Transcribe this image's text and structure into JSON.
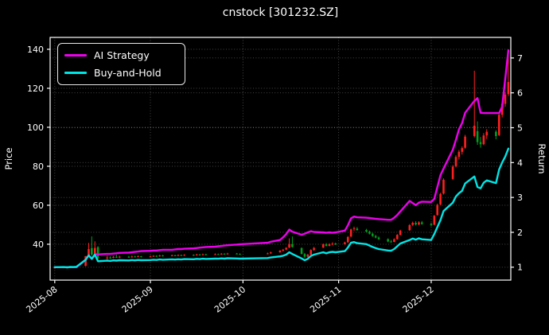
{
  "window": {
    "title": "cnstock [301232.SZ]"
  },
  "chart_data": {
    "type": "candlestick+line",
    "title": "cnstock [301232.SZ]",
    "legend": [
      {
        "label": "AI Strategy",
        "color": "#ee00ee"
      },
      {
        "label": "Buy-and-Hold",
        "color": "#00e5e5"
      }
    ],
    "left_axis": {
      "label": "Price",
      "ticks": [
        40,
        60,
        80,
        100,
        120,
        140
      ],
      "range": [
        21.6,
        146.1
      ]
    },
    "right_axis": {
      "label": "Return",
      "ticks": [
        1,
        2,
        3,
        4,
        5,
        6,
        7
      ],
      "range": [
        0.63,
        7.59
      ]
    },
    "x_axis": {
      "tick_labels": [
        "2025-08",
        "2025-09",
        "2025-10",
        "2025-11",
        "2025-12"
      ],
      "tick_day_offsets": [
        0,
        31,
        61,
        92,
        122
      ],
      "range_days": [
        -1.5,
        147.8
      ]
    },
    "colors": {
      "up": "#ff2020",
      "down": "#00a01e",
      "background": "#000000",
      "text": "#ffffff",
      "grid": "#ffffff",
      "spine": "#ffffff"
    },
    "grid": "dotted, both price and return ticks, plus month verticals",
    "dates": [
      "08-01",
      "08-04",
      "08-05",
      "08-06",
      "08-07",
      "08-08",
      "08-11",
      "08-12",
      "08-13",
      "08-14",
      "08-15",
      "08-18",
      "08-19",
      "08-20",
      "08-21",
      "08-22",
      "08-25",
      "08-26",
      "08-27",
      "08-28",
      "08-29",
      "09-01",
      "09-02",
      "09-03",
      "09-04",
      "09-05",
      "09-08",
      "09-09",
      "09-10",
      "09-11",
      "09-12",
      "09-15",
      "09-16",
      "09-17",
      "09-18",
      "09-19",
      "09-22",
      "09-23",
      "09-24",
      "09-25",
      "09-26",
      "09-29",
      "09-30",
      "10-09",
      "10-10",
      "10-13",
      "10-14",
      "10-15",
      "10-16",
      "10-17",
      "10-20",
      "10-21",
      "10-22",
      "10-23",
      "10-24",
      "10-27",
      "10-28",
      "10-29",
      "10-30",
      "10-31",
      "11-03",
      "11-04",
      "11-05",
      "11-06",
      "11-07",
      "11-10",
      "11-11",
      "11-12",
      "11-13",
      "11-14",
      "11-17",
      "11-18",
      "11-19",
      "11-20",
      "11-21",
      "11-24",
      "11-25",
      "11-26",
      "11-27",
      "11-28",
      "12-01",
      "12-02",
      "12-03",
      "12-04",
      "12-05",
      "12-08",
      "12-09",
      "12-10",
      "12-11",
      "12-12",
      "12-15",
      "12-16",
      "12-17",
      "12-18",
      "12-19",
      "12-22",
      "12-23",
      "12-24",
      "12-25",
      "12-26"
    ],
    "ohlc": [
      [
        27.8,
        28.3,
        27.6,
        28.0
      ],
      [
        28.0,
        28.4,
        27.8,
        28.1
      ],
      [
        28.1,
        28.3,
        27.7,
        27.9
      ],
      [
        27.9,
        28.5,
        27.8,
        28.2
      ],
      [
        28.2,
        28.4,
        27.9,
        28.1
      ],
      [
        28.1,
        28.6,
        28.0,
        28.3
      ],
      [
        28.9,
        33.9,
        28.7,
        33.9
      ],
      [
        34.5,
        40.7,
        34.0,
        37.5
      ],
      [
        38.0,
        44.0,
        34.0,
        34.7
      ],
      [
        35.0,
        41.5,
        34.5,
        38.1
      ],
      [
        38.5,
        39.0,
        32.3,
        32.8
      ],
      [
        32.8,
        34.2,
        32.0,
        33.2
      ],
      [
        33.2,
        33.8,
        32.5,
        33.0
      ],
      [
        33.0,
        34.0,
        32.8,
        33.5
      ],
      [
        33.5,
        34.6,
        33.0,
        33.3
      ],
      [
        33.3,
        34.1,
        32.9,
        33.6
      ],
      [
        33.6,
        34.0,
        33.0,
        33.4
      ],
      [
        33.4,
        34.2,
        33.1,
        33.7
      ],
      [
        33.7,
        34.1,
        33.2,
        33.5
      ],
      [
        33.5,
        34.3,
        33.3,
        33.8
      ],
      [
        33.8,
        34.0,
        33.2,
        33.6
      ],
      [
        33.6,
        34.2,
        33.4,
        33.7
      ],
      [
        33.7,
        34.4,
        33.5,
        34.0
      ],
      [
        34.0,
        34.3,
        33.5,
        33.8
      ],
      [
        33.8,
        34.6,
        33.6,
        34.2
      ],
      [
        34.2,
        34.5,
        33.7,
        34.0
      ],
      [
        34.0,
        34.7,
        33.8,
        34.3
      ],
      [
        34.3,
        34.6,
        33.9,
        34.1
      ],
      [
        34.1,
        34.8,
        33.9,
        34.4
      ],
      [
        34.4,
        34.7,
        34.0,
        34.2
      ],
      [
        34.2,
        34.9,
        34.0,
        34.5
      ],
      [
        34.5,
        34.8,
        34.1,
        34.4
      ],
      [
        34.4,
        35.1,
        34.2,
        34.7
      ],
      [
        34.7,
        35.0,
        34.2,
        34.5
      ],
      [
        34.5,
        35.2,
        34.3,
        34.8
      ],
      [
        34.8,
        35.1,
        34.3,
        34.6
      ],
      [
        34.6,
        35.3,
        34.4,
        34.9
      ],
      [
        34.9,
        35.2,
        34.5,
        34.8
      ],
      [
        34.8,
        35.5,
        34.6,
        35.1
      ],
      [
        35.1,
        35.4,
        34.6,
        34.9
      ],
      [
        34.9,
        35.6,
        34.7,
        35.2
      ],
      [
        35.2,
        35.5,
        34.8,
        35.0
      ],
      [
        35.0,
        35.3,
        34.6,
        34.9
      ],
      [
        35.0,
        35.7,
        34.8,
        35.3
      ],
      [
        35.3,
        36.2,
        35.1,
        35.8
      ],
      [
        35.9,
        37.0,
        35.6,
        36.7
      ],
      [
        36.7,
        37.6,
        36.3,
        37.2
      ],
      [
        37.3,
        38.5,
        36.9,
        38.1
      ],
      [
        38.3,
        43.0,
        38.0,
        40.0
      ],
      [
        40.0,
        44.0,
        38.2,
        38.6
      ],
      [
        38.0,
        38.4,
        34.8,
        35.0
      ],
      [
        35.0,
        35.5,
        33.0,
        33.6
      ],
      [
        33.6,
        35.0,
        33.2,
        34.7
      ],
      [
        34.7,
        37.4,
        34.5,
        37.0
      ],
      [
        37.0,
        38.6,
        36.6,
        38.1
      ],
      [
        38.3,
        40.4,
        38.0,
        40.0
      ],
      [
        40.0,
        40.6,
        38.8,
        39.2
      ],
      [
        39.2,
        40.5,
        38.9,
        40.0
      ],
      [
        40.0,
        41.0,
        39.5,
        40.3
      ],
      [
        40.3,
        40.8,
        39.6,
        40.0
      ],
      [
        40.1,
        41.3,
        39.8,
        40.9
      ],
      [
        41.0,
        44.2,
        40.7,
        43.7
      ],
      [
        44.0,
        48.0,
        43.6,
        47.6
      ],
      [
        47.8,
        49.0,
        46.8,
        48.2
      ],
      [
        48.0,
        48.8,
        46.9,
        47.3
      ],
      [
        47.3,
        47.9,
        46.0,
        46.5
      ],
      [
        46.5,
        47.0,
        45.0,
        45.4
      ],
      [
        45.4,
        45.9,
        43.8,
        44.2
      ],
      [
        44.2,
        44.8,
        43.0,
        43.4
      ],
      [
        43.4,
        44.0,
        42.2,
        42.6
      ],
      [
        42.6,
        43.0,
        41.0,
        41.4
      ],
      [
        41.4,
        42.2,
        40.8,
        41.2
      ],
      [
        41.2,
        43.0,
        41.0,
        42.6
      ],
      [
        42.6,
        45.2,
        42.3,
        44.8
      ],
      [
        44.8,
        47.4,
        44.5,
        47.0
      ],
      [
        47.2,
        50.3,
        46.9,
        49.8
      ],
      [
        49.9,
        51.6,
        49.4,
        51.0
      ],
      [
        51.0,
        51.8,
        49.6,
        50.1
      ],
      [
        50.1,
        51.8,
        49.8,
        51.2
      ],
      [
        51.2,
        51.9,
        50.0,
        50.4
      ],
      [
        50.4,
        51.0,
        49.2,
        49.8
      ],
      [
        50.0,
        55.0,
        49.8,
        54.6
      ],
      [
        55.0,
        60.8,
        54.6,
        60.2
      ],
      [
        60.5,
        66.4,
        60.0,
        65.8
      ],
      [
        66.0,
        73.8,
        65.5,
        73.1
      ],
      [
        73.5,
        80.6,
        73.0,
        79.8
      ],
      [
        80.0,
        85.6,
        79.4,
        84.8
      ],
      [
        84.8,
        88.3,
        83.5,
        87.4
      ],
      [
        87.4,
        90.2,
        86.0,
        89.3
      ],
      [
        89.5,
        96.1,
        89.0,
        95.2
      ],
      [
        95.5,
        129.0,
        94.8,
        100.8
      ],
      [
        98.0,
        103.0,
        91.0,
        92.4
      ],
      [
        92.4,
        95.0,
        89.5,
        91.3
      ],
      [
        91.3,
        97.0,
        90.8,
        95.8
      ],
      [
        95.8,
        99.0,
        94.0,
        97.7
      ],
      [
        97.7,
        98.5,
        93.8,
        95.5
      ],
      [
        96.0,
        107.5,
        95.5,
        106.4
      ],
      [
        106.4,
        113.2,
        105.0,
        112.0
      ],
      [
        112.0,
        118.0,
        110.5,
        116.8
      ],
      [
        117.0,
        140.0,
        116.0,
        123.2
      ]
    ],
    "ai_strategy_return": [
      1.0,
      1.0,
      1.0,
      1.0,
      1.0,
      1.0,
      1.21,
      1.34,
      1.24,
      1.37,
      1.37,
      1.38,
      1.38,
      1.39,
      1.4,
      1.41,
      1.42,
      1.43,
      1.44,
      1.45,
      1.46,
      1.47,
      1.48,
      1.48,
      1.49,
      1.5,
      1.5,
      1.51,
      1.52,
      1.52,
      1.53,
      1.54,
      1.55,
      1.56,
      1.57,
      1.58,
      1.59,
      1.6,
      1.61,
      1.62,
      1.63,
      1.65,
      1.66,
      1.7,
      1.73,
      1.78,
      1.86,
      1.95,
      2.08,
      2.02,
      1.93,
      1.96,
      2.0,
      2.03,
      2.01,
      2.0,
      1.99,
      2.0,
      1.99,
      2.0,
      2.05,
      2.2,
      2.4,
      2.45,
      2.43,
      2.42,
      2.41,
      2.4,
      2.39,
      2.38,
      2.36,
      2.36,
      2.42,
      2.5,
      2.6,
      2.9,
      2.84,
      2.78,
      2.85,
      2.88,
      2.87,
      2.96,
      3.3,
      3.64,
      3.83,
      4.37,
      4.65,
      4.95,
      5.13,
      5.43,
      5.77,
      5.85,
      5.43,
      5.42,
      5.42,
      5.42,
      5.42,
      5.6,
      6.4,
      7.22
    ],
    "buy_hold_return": [
      1.0,
      1.004,
      0.996,
      1.007,
      1.004,
      1.011,
      1.211,
      1.339,
      1.239,
      1.361,
      1.171,
      1.186,
      1.179,
      1.196,
      1.189,
      1.2,
      1.193,
      1.204,
      1.196,
      1.207,
      1.2,
      1.204,
      1.214,
      1.207,
      1.221,
      1.214,
      1.225,
      1.218,
      1.229,
      1.221,
      1.232,
      1.229,
      1.239,
      1.232,
      1.243,
      1.236,
      1.246,
      1.243,
      1.254,
      1.246,
      1.257,
      1.25,
      1.246,
      1.261,
      1.279,
      1.311,
      1.329,
      1.361,
      1.429,
      1.379,
      1.25,
      1.2,
      1.239,
      1.321,
      1.361,
      1.429,
      1.4,
      1.429,
      1.439,
      1.429,
      1.461,
      1.561,
      1.7,
      1.721,
      1.689,
      1.661,
      1.621,
      1.579,
      1.55,
      1.521,
      1.479,
      1.471,
      1.521,
      1.6,
      1.679,
      1.779,
      1.821,
      1.789,
      1.829,
      1.8,
      1.779,
      1.95,
      2.15,
      2.35,
      2.611,
      2.85,
      3.029,
      3.121,
      3.189,
      3.4,
      3.6,
      3.3,
      3.261,
      3.421,
      3.489,
      3.411,
      3.8,
      4.0,
      4.171,
      4.4
    ]
  }
}
